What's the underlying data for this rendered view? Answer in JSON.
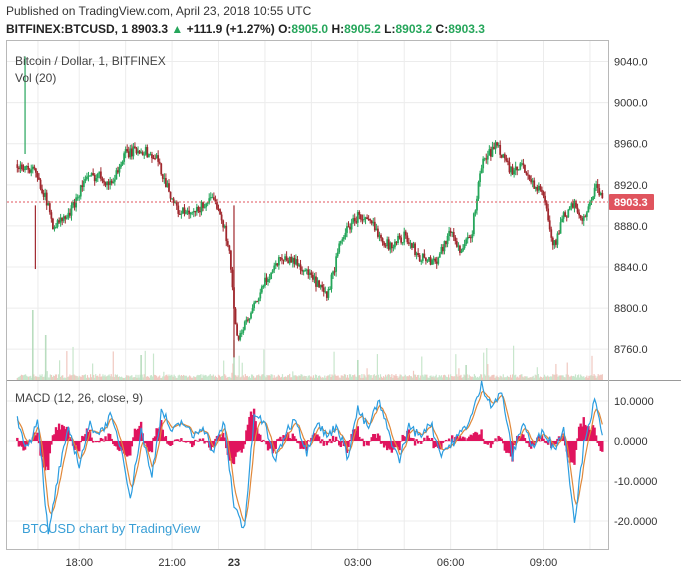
{
  "header": {
    "published": "Published on TradingView.com, April 23, 2018 10:55 UTC",
    "symbol_line": "BITFINEX:BTCUSD, 1",
    "last": "8903.3",
    "change_arrow": "▲",
    "change": "+111.9 (+1.27%)",
    "o_label": "O:",
    "o_value": "8905.0",
    "h_label": "H:",
    "h_value": "8905.2",
    "l_label": "L:",
    "l_value": "8903.2",
    "c_label": "C:",
    "c_value": "8903.3"
  },
  "panes": {
    "price_title": "Bitcoin / Dollar, 1, BITFINEX",
    "volume_label": "Vol (20)",
    "macd_label": "MACD (12, 26, close, 9)",
    "watermark": "BTCUSD chart by TradingView"
  },
  "colors": {
    "up": "#26a65b",
    "down": "#a0282e",
    "macd": "#2b9de0",
    "signal": "#e0883a",
    "histogram": "#e0145e",
    "last_price_tag": "#e0545e",
    "grid": "#ececec",
    "watermark": "#3a9fd6"
  },
  "chart_data": [
    {
      "type": "line",
      "subtype": "candlestick",
      "x_ticks": [
        "18:00",
        "21:00",
        "23",
        "03:00",
        "06:00",
        "09:00"
      ],
      "ylim": [
        8730,
        9060
      ],
      "y_ticks": [
        8760.0,
        8800.0,
        8840.0,
        8880.0,
        8920.0,
        8960.0,
        9000.0,
        9040.0
      ],
      "last_price": 8903.3,
      "price_path": {
        "x": [
          "16:00",
          "16:30",
          "16:50",
          "17:10",
          "17:40",
          "18:10",
          "18:40",
          "19:00",
          "19:30",
          "20:00",
          "20:30",
          "21:10",
          "21:40",
          "22:10",
          "22:30",
          "22:50",
          "23:05",
          "23:30",
          "00:00",
          "00:30",
          "01:00",
          "01:30",
          "02:00",
          "02:30",
          "03:00",
          "03:30",
          "04:00",
          "04:30",
          "05:00",
          "05:30",
          "06:00",
          "06:20",
          "06:40",
          "07:00",
          "07:30",
          "08:00",
          "08:20",
          "08:40",
          "09:00",
          "09:20",
          "09:40",
          "10:00",
          "10:20",
          "10:40",
          "10:55"
        ],
        "y": [
          8940,
          8935,
          8915,
          8880,
          8890,
          8925,
          8930,
          8920,
          8950,
          8955,
          8945,
          8895,
          8890,
          8905,
          8900,
          8860,
          8770,
          8790,
          8825,
          8850,
          8845,
          8830,
          8810,
          8870,
          8890,
          8880,
          8860,
          8870,
          8850,
          8845,
          8875,
          8855,
          8870,
          8940,
          8960,
          8930,
          8940,
          8920,
          8910,
          8860,
          8890,
          8900,
          8885,
          8920,
          8903
        ]
      },
      "spikes": [
        {
          "x": "16:15",
          "high": 9045
        },
        {
          "x": "16:35",
          "low": 8838
        },
        {
          "x": "23:00",
          "low": 8752
        }
      ]
    },
    {
      "type": "bar",
      "name": "Vol (20)",
      "note": "volume bars near bottom of price pane"
    },
    {
      "type": "line",
      "name": "MACD (12, 26, close, 9)",
      "ylim": [
        -27,
        15
      ],
      "y_ticks": [
        10.0,
        0.0,
        -10.0,
        -20.0
      ],
      "y_tick_labels": [
        "10.0000",
        "0.0000",
        "-10.0000",
        "-20.0000"
      ],
      "macd": {
        "x": [
          "16:00",
          "16:20",
          "16:40",
          "17:00",
          "17:20",
          "17:40",
          "18:00",
          "18:20",
          "18:40",
          "19:00",
          "19:20",
          "19:40",
          "20:00",
          "20:20",
          "20:40",
          "21:00",
          "21:20",
          "21:40",
          "22:00",
          "22:20",
          "22:40",
          "23:00",
          "23:20",
          "23:40",
          "00:00",
          "00:20",
          "00:40",
          "01:00",
          "01:20",
          "01:40",
          "02:00",
          "02:20",
          "02:40",
          "03:00",
          "03:20",
          "03:40",
          "04:00",
          "04:20",
          "04:40",
          "05:00",
          "05:20",
          "05:40",
          "06:00",
          "06:20",
          "06:40",
          "07:00",
          "07:20",
          "07:40",
          "08:00",
          "08:20",
          "08:40",
          "09:00",
          "09:20",
          "09:40",
          "10:00",
          "10:20",
          "10:40",
          "10:55"
        ],
        "y": [
          5,
          -2,
          6,
          -24,
          -8,
          3,
          -6,
          4,
          2,
          6,
          -1,
          -14,
          3,
          -9,
          8,
          2,
          5,
          1,
          4,
          -3,
          5,
          -16,
          -22,
          7,
          4,
          -5,
          2,
          6,
          -3,
          5,
          1,
          4,
          -4,
          8,
          3,
          10,
          2,
          -5,
          4,
          1,
          5,
          -3,
          -1,
          2,
          6,
          14,
          9,
          12,
          -4,
          5,
          -2,
          3,
          -2,
          3,
          -20,
          1,
          10,
          0
        ]
      },
      "signal_note": "signal line trails the MACD line",
      "histogram_note": "histogram = MACD minus signal"
    }
  ]
}
